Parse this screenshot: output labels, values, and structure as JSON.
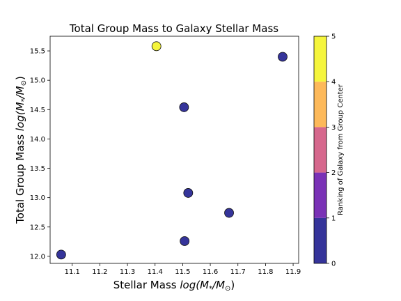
{
  "chart_data": {
    "type": "scatter",
    "title": "Total Group Mass to Galaxy Stellar Mass",
    "xlabel": "Stellar Mass log(M*/M⊙)",
    "ylabel": "Total Group Mass log(M*/M⊙)",
    "xlim": [
      11.02,
      11.92
    ],
    "ylim": [
      11.88,
      15.75
    ],
    "xticks": [
      11.1,
      11.2,
      11.3,
      11.4,
      11.5,
      11.6,
      11.7,
      11.8,
      11.9
    ],
    "yticks": [
      12.0,
      12.5,
      13.0,
      13.5,
      14.0,
      14.5,
      15.0,
      15.5
    ],
    "points": [
      {
        "x": 11.06,
        "y": 12.03,
        "rank": 0
      },
      {
        "x": 11.405,
        "y": 15.58,
        "rank": 4
      },
      {
        "x": 11.505,
        "y": 14.54,
        "rank": 0
      },
      {
        "x": 11.507,
        "y": 12.26,
        "rank": 0
      },
      {
        "x": 11.52,
        "y": 13.08,
        "rank": 0
      },
      {
        "x": 11.668,
        "y": 12.74,
        "rank": 0
      },
      {
        "x": 11.862,
        "y": 15.4,
        "rank": 0
      }
    ],
    "colorbar": {
      "label": "Ranking of Galaxy from Group Center",
      "ticks": [
        0,
        1,
        2,
        3,
        4,
        5
      ],
      "range": [
        0,
        5
      ],
      "colors": [
        "#35349a",
        "#7a32b6",
        "#d6688d",
        "#fdb95a",
        "#f5f53c"
      ]
    },
    "grid": false
  }
}
